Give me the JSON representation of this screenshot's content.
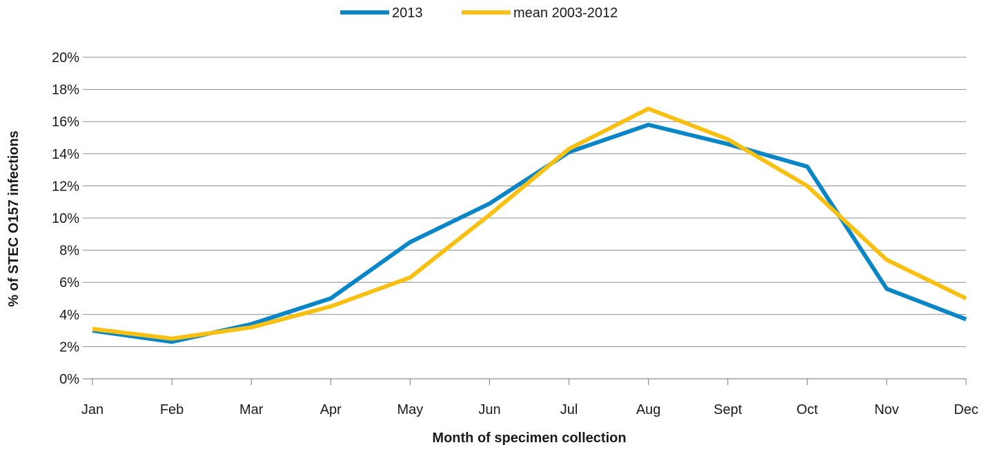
{
  "chart_data": {
    "type": "line",
    "xlabel": "Month of specimen collection",
    "ylabel": "% of STEC O157 infections",
    "categories": [
      "Jan",
      "Feb",
      "Mar",
      "Apr",
      "May",
      "Jun",
      "Jul",
      "Aug",
      "Sept",
      "Oct",
      "Nov",
      "Dec"
    ],
    "ylim": [
      0,
      20
    ],
    "yticks": [
      "0%",
      "2%",
      "4%",
      "6%",
      "8%",
      "10%",
      "12%",
      "14%",
      "16%",
      "18%",
      "20%"
    ],
    "grid": true,
    "legend_position": "top-center",
    "series": [
      {
        "name": "2013",
        "color": "#0a85c6",
        "values": [
          3.0,
          2.3,
          3.4,
          5.0,
          8.5,
          10.9,
          14.1,
          15.8,
          14.6,
          13.2,
          5.6,
          3.7
        ]
      },
      {
        "name": "mean 2003-2012",
        "color": "#f8c013",
        "values": [
          3.1,
          2.5,
          3.2,
          4.5,
          6.3,
          10.2,
          14.3,
          16.8,
          14.9,
          12.0,
          7.4,
          5.0
        ]
      }
    ]
  }
}
